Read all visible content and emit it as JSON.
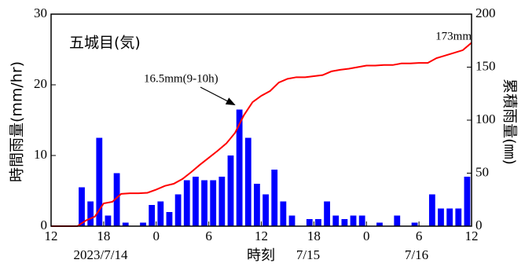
{
  "chart_data": {
    "type": "bar_line",
    "title": "五城目(気)",
    "ylabel": "時間雨量(mm/hr)",
    "y2label": "累積雨量(㎜)",
    "xlabel": "時刻",
    "date_labels": [
      "2023/7/14",
      "7/15",
      "7/16"
    ],
    "annotations": [
      {
        "text": "16.5mm(9-10h)",
        "x": 21.5,
        "y": 16.5
      },
      {
        "text": "173mm",
        "x": 48,
        "y": 173
      }
    ],
    "xlim": [
      0,
      48
    ],
    "xticks": [
      {
        "value": 0,
        "label": "12"
      },
      {
        "value": 6,
        "label": "18"
      },
      {
        "value": 12,
        "label": "0"
      },
      {
        "value": 18,
        "label": "6"
      },
      {
        "value": 24,
        "label": "12"
      },
      {
        "value": 30,
        "label": "18"
      },
      {
        "value": 36,
        "label": "0"
      },
      {
        "value": 42,
        "label": "6"
      },
      {
        "value": 48,
        "label": "12"
      }
    ],
    "ylim": [
      0,
      30
    ],
    "yticks": [
      0,
      10,
      20,
      30
    ],
    "y2lim": [
      0,
      200
    ],
    "y2ticks": [
      0,
      50,
      100,
      150,
      200
    ],
    "series": [
      {
        "type": "bar",
        "color": "#0000ff",
        "x": [
          0,
          1,
          2,
          3,
          4,
          5,
          6,
          7,
          8,
          9,
          10,
          11,
          12,
          13,
          14,
          15,
          16,
          17,
          18,
          19,
          20,
          21,
          22,
          23,
          24,
          25,
          26,
          27,
          28,
          29,
          30,
          31,
          32,
          33,
          34,
          35,
          36,
          37,
          38,
          39,
          40,
          41,
          42,
          43,
          44,
          45,
          46,
          47
        ],
        "values": [
          0,
          0,
          0,
          5.5,
          3.5,
          12.5,
          1.5,
          7.5,
          0.5,
          0,
          0.5,
          3,
          3.5,
          2,
          4.5,
          6.5,
          7,
          6.5,
          6.5,
          7,
          10,
          16.5,
          12.5,
          6,
          4.5,
          8,
          3.5,
          1.5,
          0,
          1,
          1,
          3.5,
          1.5,
          1,
          1.5,
          1.5,
          0,
          0.5,
          0,
          1.5,
          0,
          0.5,
          0,
          4.5,
          2.5,
          2.5,
          2.5,
          7
        ]
      },
      {
        "type": "line",
        "color": "#ff0000",
        "axis": "y2",
        "x": [
          0,
          1,
          2,
          3,
          4,
          5,
          6,
          7,
          8,
          9,
          10,
          11,
          12,
          13,
          14,
          15,
          16,
          17,
          18,
          19,
          20,
          21,
          22,
          23,
          24,
          25,
          26,
          27,
          28,
          29,
          30,
          31,
          32,
          33,
          34,
          35,
          36,
          37,
          38,
          39,
          40,
          41,
          42,
          43,
          44,
          45,
          46,
          47,
          48
        ],
        "values": [
          0,
          0,
          0,
          0,
          5.5,
          9,
          21.5,
          23,
          30.5,
          31,
          31,
          31.5,
          34.5,
          38,
          40,
          44.5,
          51,
          58,
          64.5,
          71,
          78,
          88,
          104.5,
          117,
          123,
          127.5,
          135.5,
          139,
          140.5,
          140.5,
          141.5,
          142.5,
          146,
          147.5,
          148.5,
          150,
          151.5,
          151.5,
          152,
          152,
          153.5,
          153.5,
          154,
          154,
          158.5,
          161,
          163.5,
          166,
          173
        ]
      }
    ]
  }
}
